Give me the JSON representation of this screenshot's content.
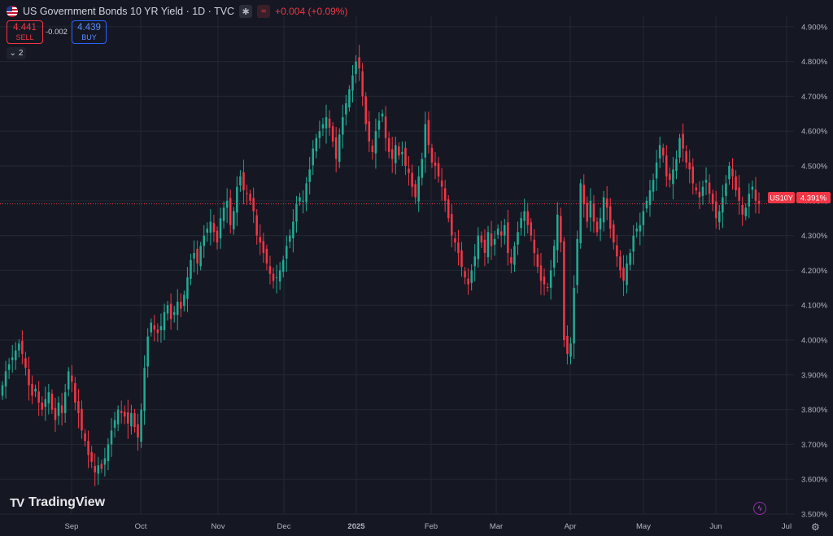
{
  "header": {
    "title": "US Government Bonds 10 YR Yield · 1D · TVC",
    "change": "+0.004 (+0.09%)",
    "icons": [
      "us-flag-icon",
      "snowflake-icon",
      "wave-icon"
    ]
  },
  "trade": {
    "sell_price": "4.441",
    "sell_label": "SELL",
    "spread": "-0.002",
    "buy_price": "4.439",
    "buy_label": "BUY"
  },
  "indicators": {
    "count": "2"
  },
  "branding": {
    "logo_text": "TradingView"
  },
  "colors": {
    "up": "#22ab94",
    "down": "#f23645",
    "background": "#151823",
    "grid": "#232733",
    "axis_text": "#b2b5be"
  },
  "chart_data": {
    "type": "candlestick",
    "symbol": "US10Y",
    "last_price": "4.391%",
    "y_unit": "%",
    "ylim": [
      3.5,
      4.93
    ],
    "yticks": [
      "4.900%",
      "4.800%",
      "4.700%",
      "4.600%",
      "4.500%",
      "4.400%",
      "4.300%",
      "4.200%",
      "4.100%",
      "4.000%",
      "3.900%",
      "3.800%",
      "3.700%",
      "3.600%",
      "3.500%"
    ],
    "xticks": [
      "Sep",
      "Oct",
      "Nov",
      "Dec",
      "2025",
      "Feb",
      "Mar",
      "Apr",
      "May",
      "Jun",
      "Jul"
    ],
    "grid": true,
    "series_close": [
      3.87,
      3.91,
      3.93,
      3.95,
      3.97,
      3.99,
      3.96,
      3.92,
      3.87,
      3.84,
      3.86,
      3.82,
      3.8,
      3.83,
      3.85,
      3.8,
      3.77,
      3.82,
      3.79,
      3.85,
      3.91,
      3.88,
      3.82,
      3.79,
      3.74,
      3.71,
      3.67,
      3.65,
      3.62,
      3.64,
      3.63,
      3.66,
      3.7,
      3.74,
      3.77,
      3.8,
      3.79,
      3.78,
      3.76,
      3.79,
      3.75,
      3.72,
      3.8,
      3.92,
      4.01,
      4.05,
      4.03,
      4.02,
      4.04,
      4.08,
      4.1,
      4.06,
      4.08,
      4.11,
      4.09,
      4.13,
      4.18,
      4.23,
      4.25,
      4.22,
      4.27,
      4.3,
      4.32,
      4.34,
      4.31,
      4.28,
      4.35,
      4.38,
      4.4,
      4.33,
      4.37,
      4.44,
      4.47,
      4.43,
      4.42,
      4.4,
      4.37,
      4.3,
      4.28,
      4.25,
      4.22,
      4.19,
      4.17,
      4.18,
      4.2,
      4.23,
      4.27,
      4.3,
      4.34,
      4.39,
      4.41,
      4.4,
      4.45,
      4.49,
      4.55,
      4.58,
      4.6,
      4.62,
      4.64,
      4.61,
      4.57,
      4.52,
      4.59,
      4.64,
      4.68,
      4.72,
      4.76,
      4.8,
      4.78,
      4.7,
      4.62,
      4.57,
      4.54,
      4.6,
      4.63,
      4.65,
      4.58,
      4.54,
      4.52,
      4.56,
      4.53,
      4.54,
      4.5,
      4.48,
      4.44,
      4.41,
      4.47,
      4.52,
      4.62,
      4.56,
      4.51,
      4.5,
      4.47,
      4.44,
      4.4,
      4.35,
      4.3,
      4.28,
      4.25,
      4.21,
      4.18,
      4.16,
      4.2,
      4.24,
      4.3,
      4.28,
      4.25,
      4.31,
      4.27,
      4.29,
      4.32,
      4.3,
      4.33,
      4.25,
      4.22,
      4.27,
      4.31,
      4.35,
      4.37,
      4.33,
      4.3,
      4.25,
      4.21,
      4.17,
      4.16,
      4.15,
      4.2,
      4.27,
      4.36,
      4.28,
      4.0,
      3.96,
      3.99,
      4.15,
      4.29,
      4.45,
      4.39,
      4.34,
      4.4,
      4.34,
      4.31,
      4.35,
      4.41,
      4.38,
      4.32,
      4.28,
      4.24,
      4.2,
      4.17,
      4.22,
      4.25,
      4.3,
      4.32,
      4.33,
      4.37,
      4.4,
      4.43,
      4.46,
      4.51,
      4.56,
      4.53,
      4.47,
      4.46,
      4.49,
      4.52,
      4.58,
      4.55,
      4.51,
      4.49,
      4.45,
      4.43,
      4.41,
      4.44,
      4.46,
      4.42,
      4.39,
      4.35,
      4.37,
      4.41,
      4.45,
      4.5,
      4.47,
      4.43,
      4.4,
      4.36,
      4.38,
      4.42,
      4.44,
      4.4,
      4.391
    ]
  }
}
